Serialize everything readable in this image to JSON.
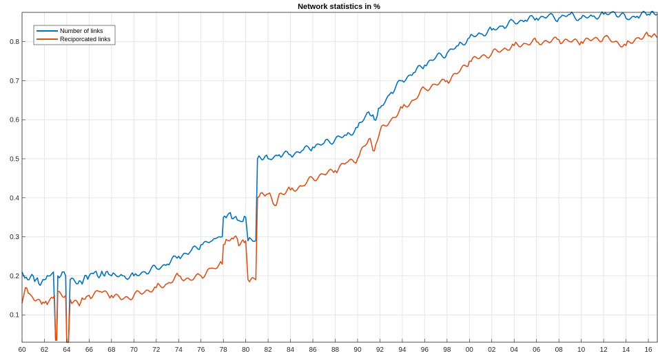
{
  "chart_data": {
    "type": "line",
    "title": "Network statistics in %",
    "xlabel": "",
    "ylabel": "",
    "x_range": [
      1960,
      2016.8
    ],
    "ylim": [
      0.03,
      0.875
    ],
    "grid": true,
    "legend_position": "top-left",
    "x_ticks": [
      {
        "value": 1960,
        "label": "60"
      },
      {
        "value": 1962,
        "label": "62"
      },
      {
        "value": 1964,
        "label": "64"
      },
      {
        "value": 1966,
        "label": "66"
      },
      {
        "value": 1968,
        "label": "68"
      },
      {
        "value": 1970,
        "label": "70"
      },
      {
        "value": 1972,
        "label": "72"
      },
      {
        "value": 1974,
        "label": "74"
      },
      {
        "value": 1976,
        "label": "76"
      },
      {
        "value": 1978,
        "label": "78"
      },
      {
        "value": 1980,
        "label": "80"
      },
      {
        "value": 1982,
        "label": "82"
      },
      {
        "value": 1984,
        "label": "84"
      },
      {
        "value": 1986,
        "label": "86"
      },
      {
        "value": 1988,
        "label": "88"
      },
      {
        "value": 1990,
        "label": "90"
      },
      {
        "value": 1992,
        "label": "92"
      },
      {
        "value": 1994,
        "label": "94"
      },
      {
        "value": 1996,
        "label": "96"
      },
      {
        "value": 1998,
        "label": "98"
      },
      {
        "value": 2000,
        "label": "00"
      },
      {
        "value": 2002,
        "label": "02"
      },
      {
        "value": 2004,
        "label": "04"
      },
      {
        "value": 2006,
        "label": "06"
      },
      {
        "value": 2008,
        "label": "08"
      },
      {
        "value": 2010,
        "label": "10"
      },
      {
        "value": 2012,
        "label": "12"
      },
      {
        "value": 2014,
        "label": "14"
      },
      {
        "value": 2016,
        "label": "16"
      }
    ],
    "y_ticks": [
      {
        "value": 0.1,
        "label": "0.1"
      },
      {
        "value": 0.2,
        "label": "0.2"
      },
      {
        "value": 0.3,
        "label": "0.3"
      },
      {
        "value": 0.4,
        "label": "0.4"
      },
      {
        "value": 0.5,
        "label": "0.5"
      },
      {
        "value": 0.6,
        "label": "0.6"
      },
      {
        "value": 0.7,
        "label": "0.7"
      },
      {
        "value": 0.8,
        "label": "0.8"
      }
    ],
    "series": [
      {
        "name": "Number of links",
        "color": "#0072BD",
        "points": [
          [
            1960.0,
            0.21
          ],
          [
            1960.5,
            0.19
          ],
          [
            1961.0,
            0.2
          ],
          [
            1961.5,
            0.18
          ],
          [
            1962.0,
            0.19
          ],
          [
            1962.5,
            0.2
          ],
          [
            1962.8,
            0.21
          ],
          [
            1963.0,
            0.035
          ],
          [
            1963.1,
            0.035
          ],
          [
            1963.2,
            0.2
          ],
          [
            1963.6,
            0.21
          ],
          [
            1963.9,
            0.2
          ],
          [
            1964.0,
            0.03
          ],
          [
            1964.15,
            0.03
          ],
          [
            1964.3,
            0.19
          ],
          [
            1965.0,
            0.18
          ],
          [
            1965.5,
            0.19
          ],
          [
            1966.0,
            0.2
          ],
          [
            1966.5,
            0.21
          ],
          [
            1967.0,
            0.2
          ],
          [
            1967.5,
            0.21
          ],
          [
            1968.0,
            0.2
          ],
          [
            1969.0,
            0.2
          ],
          [
            1970.0,
            0.2
          ],
          [
            1971.0,
            0.21
          ],
          [
            1972.0,
            0.22
          ],
          [
            1973.0,
            0.23
          ],
          [
            1974.0,
            0.25
          ],
          [
            1975.0,
            0.26
          ],
          [
            1976.0,
            0.28
          ],
          [
            1977.0,
            0.29
          ],
          [
            1977.9,
            0.3
          ],
          [
            1978.0,
            0.35
          ],
          [
            1978.5,
            0.36
          ],
          [
            1979.0,
            0.35
          ],
          [
            1979.5,
            0.34
          ],
          [
            1980.0,
            0.35
          ],
          [
            1980.2,
            0.29
          ],
          [
            1980.9,
            0.29
          ],
          [
            1981.05,
            0.5
          ],
          [
            1982.0,
            0.5
          ],
          [
            1983.0,
            0.51
          ],
          [
            1984.0,
            0.51
          ],
          [
            1985.0,
            0.52
          ],
          [
            1986.0,
            0.53
          ],
          [
            1987.0,
            0.54
          ],
          [
            1988.0,
            0.55
          ],
          [
            1989.0,
            0.56
          ],
          [
            1990.0,
            0.58
          ],
          [
            1991.0,
            0.62
          ],
          [
            1991.5,
            0.6
          ],
          [
            1992.0,
            0.63
          ],
          [
            1993.0,
            0.67
          ],
          [
            1994.0,
            0.7
          ],
          [
            1995.0,
            0.72
          ],
          [
            1996.0,
            0.74
          ],
          [
            1997.0,
            0.76
          ],
          [
            1998.0,
            0.77
          ],
          [
            1999.0,
            0.79
          ],
          [
            2000.0,
            0.81
          ],
          [
            2001.0,
            0.82
          ],
          [
            2002.0,
            0.83
          ],
          [
            2003.0,
            0.84
          ],
          [
            2004.0,
            0.85
          ],
          [
            2005.0,
            0.855
          ],
          [
            2006.0,
            0.86
          ],
          [
            2007.0,
            0.865
          ],
          [
            2008.0,
            0.86
          ],
          [
            2009.0,
            0.87
          ],
          [
            2010.0,
            0.86
          ],
          [
            2011.0,
            0.865
          ],
          [
            2012.0,
            0.87
          ],
          [
            2013.0,
            0.875
          ],
          [
            2014.0,
            0.86
          ],
          [
            2015.0,
            0.865
          ],
          [
            2016.0,
            0.87
          ],
          [
            2016.8,
            0.87
          ]
        ]
      },
      {
        "name": "Reciporcated links",
        "color": "#D95319",
        "points": [
          [
            1960.0,
            0.13
          ],
          [
            1960.3,
            0.17
          ],
          [
            1960.8,
            0.15
          ],
          [
            1961.5,
            0.14
          ],
          [
            1962.0,
            0.13
          ],
          [
            1962.5,
            0.14
          ],
          [
            1962.9,
            0.15
          ],
          [
            1963.0,
            0.035
          ],
          [
            1963.1,
            0.035
          ],
          [
            1963.2,
            0.16
          ],
          [
            1963.9,
            0.15
          ],
          [
            1964.0,
            0.03
          ],
          [
            1964.15,
            0.03
          ],
          [
            1964.3,
            0.14
          ],
          [
            1965.0,
            0.13
          ],
          [
            1965.5,
            0.14
          ],
          [
            1966.0,
            0.15
          ],
          [
            1967.0,
            0.16
          ],
          [
            1968.0,
            0.15
          ],
          [
            1969.0,
            0.14
          ],
          [
            1970.0,
            0.15
          ],
          [
            1971.0,
            0.16
          ],
          [
            1972.0,
            0.17
          ],
          [
            1973.0,
            0.18
          ],
          [
            1974.0,
            0.2
          ],
          [
            1975.0,
            0.19
          ],
          [
            1976.0,
            0.2
          ],
          [
            1977.0,
            0.22
          ],
          [
            1977.9,
            0.23
          ],
          [
            1978.0,
            0.28
          ],
          [
            1978.5,
            0.29
          ],
          [
            1979.0,
            0.3
          ],
          [
            1979.5,
            0.28
          ],
          [
            1980.0,
            0.29
          ],
          [
            1980.2,
            0.19
          ],
          [
            1980.9,
            0.19
          ],
          [
            1981.05,
            0.4
          ],
          [
            1982.0,
            0.41
          ],
          [
            1982.6,
            0.38
          ],
          [
            1983.0,
            0.41
          ],
          [
            1984.0,
            0.42
          ],
          [
            1985.0,
            0.43
          ],
          [
            1986.0,
            0.45
          ],
          [
            1987.0,
            0.46
          ],
          [
            1988.0,
            0.47
          ],
          [
            1989.0,
            0.49
          ],
          [
            1990.0,
            0.5
          ],
          [
            1991.0,
            0.55
          ],
          [
            1991.5,
            0.52
          ],
          [
            1992.0,
            0.57
          ],
          [
            1993.0,
            0.6
          ],
          [
            1994.0,
            0.63
          ],
          [
            1995.0,
            0.65
          ],
          [
            1996.0,
            0.68
          ],
          [
            1997.0,
            0.69
          ],
          [
            1998.0,
            0.7
          ],
          [
            1999.0,
            0.72
          ],
          [
            2000.0,
            0.75
          ],
          [
            2001.0,
            0.76
          ],
          [
            2002.0,
            0.77
          ],
          [
            2003.0,
            0.78
          ],
          [
            2004.0,
            0.79
          ],
          [
            2005.0,
            0.795
          ],
          [
            2006.0,
            0.8
          ],
          [
            2007.0,
            0.8
          ],
          [
            2008.0,
            0.805
          ],
          [
            2009.0,
            0.8
          ],
          [
            2010.0,
            0.8
          ],
          [
            2011.0,
            0.805
          ],
          [
            2012.0,
            0.81
          ],
          [
            2013.0,
            0.8
          ],
          [
            2014.0,
            0.79
          ],
          [
            2015.0,
            0.81
          ],
          [
            2016.0,
            0.815
          ],
          [
            2016.8,
            0.81
          ]
        ]
      }
    ]
  }
}
